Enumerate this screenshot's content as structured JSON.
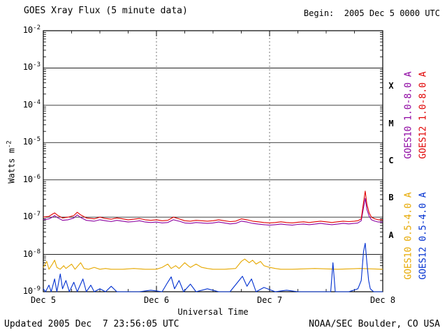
{
  "header": {
    "title": "GOES Xray Flux (5 minute data)",
    "begin": "Begin:  2005 Dec 5 0000 UTC"
  },
  "footer": {
    "updated": "Updated 2005 Dec  7 23:56:05 UTC",
    "credit": "NOAA/SEC Boulder, CO USA"
  },
  "chart_data": {
    "type": "line",
    "title": "GOES Xray Flux (5 minute data)",
    "xlabel": "Universal Time",
    "ylabel_base": "Watts m",
    "ylabel_exp": "-2",
    "x_units": "days from 2005 Dec 5 0000 UTC",
    "xlim": [
      0,
      3
    ],
    "ylim_exp": [
      -9,
      -2
    ],
    "grid": "horizontal solid each decade, vertical dashed at day boundaries",
    "x_ticks": [
      {
        "t": 0,
        "label": "Dec 5"
      },
      {
        "t": 1,
        "label": "Dec 6"
      },
      {
        "t": 2,
        "label": "Dec 7"
      },
      {
        "t": 3,
        "label": "Dec 8"
      }
    ],
    "flare_classes": [
      {
        "label": "X",
        "exp": -3.5
      },
      {
        "label": "M",
        "exp": -4.5
      },
      {
        "label": "C",
        "exp": -5.5
      },
      {
        "label": "B",
        "exp": -6.5
      },
      {
        "label": "A",
        "exp": -7.5
      }
    ],
    "series": [
      {
        "name": "GOES10 1.0-8.0 A",
        "color": "#8c00a0",
        "scale": 1e-07,
        "points": [
          [
            0,
            0.85
          ],
          [
            0.05,
            0.9
          ],
          [
            0.08,
            1.0
          ],
          [
            0.1,
            1.1
          ],
          [
            0.13,
            0.95
          ],
          [
            0.17,
            0.82
          ],
          [
            0.22,
            0.85
          ],
          [
            0.27,
            0.95
          ],
          [
            0.3,
            1.15
          ],
          [
            0.33,
            0.98
          ],
          [
            0.38,
            0.82
          ],
          [
            0.45,
            0.78
          ],
          [
            0.5,
            0.85
          ],
          [
            0.55,
            0.8
          ],
          [
            0.6,
            0.76
          ],
          [
            0.65,
            0.82
          ],
          [
            0.7,
            0.78
          ],
          [
            0.75,
            0.74
          ],
          [
            0.8,
            0.76
          ],
          [
            0.85,
            0.8
          ],
          [
            0.9,
            0.74
          ],
          [
            0.95,
            0.72
          ],
          [
            1.0,
            0.74
          ],
          [
            1.05,
            0.7
          ],
          [
            1.1,
            0.72
          ],
          [
            1.15,
            0.85
          ],
          [
            1.2,
            0.78
          ],
          [
            1.25,
            0.7
          ],
          [
            1.3,
            0.68
          ],
          [
            1.35,
            0.72
          ],
          [
            1.4,
            0.7
          ],
          [
            1.45,
            0.68
          ],
          [
            1.5,
            0.7
          ],
          [
            1.55,
            0.74
          ],
          [
            1.6,
            0.7
          ],
          [
            1.65,
            0.66
          ],
          [
            1.7,
            0.68
          ],
          [
            1.75,
            0.78
          ],
          [
            1.8,
            0.74
          ],
          [
            1.85,
            0.68
          ],
          [
            1.9,
            0.65
          ],
          [
            1.95,
            0.63
          ],
          [
            2.0,
            0.61
          ],
          [
            2.05,
            0.63
          ],
          [
            2.1,
            0.65
          ],
          [
            2.15,
            0.63
          ],
          [
            2.2,
            0.61
          ],
          [
            2.25,
            0.64
          ],
          [
            2.3,
            0.65
          ],
          [
            2.35,
            0.63
          ],
          [
            2.4,
            0.65
          ],
          [
            2.45,
            0.68
          ],
          [
            2.5,
            0.65
          ],
          [
            2.55,
            0.63
          ],
          [
            2.6,
            0.65
          ],
          [
            2.65,
            0.68
          ],
          [
            2.7,
            0.66
          ],
          [
            2.75,
            0.68
          ],
          [
            2.78,
            0.7
          ],
          [
            2.81,
            0.8
          ],
          [
            2.83,
            1.8
          ],
          [
            2.845,
            3.2
          ],
          [
            2.86,
            1.6
          ],
          [
            2.88,
            1.05
          ],
          [
            2.9,
            0.85
          ],
          [
            2.93,
            0.78
          ],
          [
            2.96,
            0.74
          ],
          [
            3.0,
            0.74
          ]
        ]
      },
      {
        "name": "GOES12 1.0-8.0 A",
        "color": "#e00000",
        "scale": 1e-07,
        "points": [
          [
            0,
            1.0
          ],
          [
            0.05,
            1.05
          ],
          [
            0.08,
            1.2
          ],
          [
            0.1,
            1.3
          ],
          [
            0.13,
            1.1
          ],
          [
            0.17,
            0.95
          ],
          [
            0.22,
            1.0
          ],
          [
            0.27,
            1.1
          ],
          [
            0.3,
            1.35
          ],
          [
            0.33,
            1.15
          ],
          [
            0.38,
            0.95
          ],
          [
            0.45,
            0.9
          ],
          [
            0.5,
            1.0
          ],
          [
            0.55,
            0.92
          ],
          [
            0.6,
            0.88
          ],
          [
            0.65,
            0.95
          ],
          [
            0.7,
            0.9
          ],
          [
            0.75,
            0.85
          ],
          [
            0.8,
            0.88
          ],
          [
            0.85,
            0.92
          ],
          [
            0.9,
            0.85
          ],
          [
            0.95,
            0.82
          ],
          [
            1.0,
            0.85
          ],
          [
            1.05,
            0.8
          ],
          [
            1.1,
            0.82
          ],
          [
            1.15,
            1.0
          ],
          [
            1.2,
            0.9
          ],
          [
            1.25,
            0.8
          ],
          [
            1.3,
            0.78
          ],
          [
            1.35,
            0.82
          ],
          [
            1.4,
            0.8
          ],
          [
            1.45,
            0.78
          ],
          [
            1.5,
            0.8
          ],
          [
            1.55,
            0.85
          ],
          [
            1.6,
            0.8
          ],
          [
            1.65,
            0.76
          ],
          [
            1.7,
            0.78
          ],
          [
            1.75,
            0.9
          ],
          [
            1.8,
            0.85
          ],
          [
            1.85,
            0.78
          ],
          [
            1.9,
            0.75
          ],
          [
            1.95,
            0.72
          ],
          [
            2.0,
            0.7
          ],
          [
            2.05,
            0.72
          ],
          [
            2.1,
            0.75
          ],
          [
            2.15,
            0.72
          ],
          [
            2.2,
            0.7
          ],
          [
            2.25,
            0.73
          ],
          [
            2.3,
            0.75
          ],
          [
            2.35,
            0.72
          ],
          [
            2.4,
            0.75
          ],
          [
            2.45,
            0.78
          ],
          [
            2.5,
            0.75
          ],
          [
            2.55,
            0.72
          ],
          [
            2.6,
            0.75
          ],
          [
            2.65,
            0.78
          ],
          [
            2.7,
            0.76
          ],
          [
            2.75,
            0.78
          ],
          [
            2.78,
            0.8
          ],
          [
            2.81,
            0.9
          ],
          [
            2.83,
            2.5
          ],
          [
            2.845,
            5.0
          ],
          [
            2.86,
            2.2
          ],
          [
            2.88,
            1.3
          ],
          [
            2.9,
            1.0
          ],
          [
            2.93,
            0.9
          ],
          [
            2.96,
            0.85
          ],
          [
            3.0,
            0.85
          ]
        ]
      },
      {
        "name": "GOES10 0.5-4.0 A",
        "color": "#e6a800",
        "scale": 1e-09,
        "points": [
          [
            0,
            4.5
          ],
          [
            0.03,
            6.5
          ],
          [
            0.05,
            4.0
          ],
          [
            0.08,
            5.5
          ],
          [
            0.1,
            7.0
          ],
          [
            0.12,
            4.5
          ],
          [
            0.15,
            4.0
          ],
          [
            0.18,
            5.0
          ],
          [
            0.2,
            4.2
          ],
          [
            0.25,
            5.5
          ],
          [
            0.28,
            4.0
          ],
          [
            0.33,
            6.0
          ],
          [
            0.36,
            4.2
          ],
          [
            0.4,
            4.0
          ],
          [
            0.45,
            4.5
          ],
          [
            0.5,
            4.0
          ],
          [
            0.55,
            4.2
          ],
          [
            0.6,
            4.0
          ],
          [
            0.7,
            4.0
          ],
          [
            0.8,
            4.2
          ],
          [
            0.9,
            4.0
          ],
          [
            1.0,
            4.0
          ],
          [
            1.05,
            4.5
          ],
          [
            1.1,
            5.5
          ],
          [
            1.13,
            4.2
          ],
          [
            1.17,
            5.0
          ],
          [
            1.2,
            4.2
          ],
          [
            1.25,
            6.0
          ],
          [
            1.28,
            5.0
          ],
          [
            1.3,
            4.5
          ],
          [
            1.35,
            5.5
          ],
          [
            1.4,
            4.5
          ],
          [
            1.45,
            4.2
          ],
          [
            1.5,
            4.0
          ],
          [
            1.6,
            4.0
          ],
          [
            1.7,
            4.2
          ],
          [
            1.75,
            6.5
          ],
          [
            1.78,
            7.5
          ],
          [
            1.82,
            6.0
          ],
          [
            1.85,
            7.0
          ],
          [
            1.88,
            5.5
          ],
          [
            1.92,
            6.5
          ],
          [
            1.95,
            5.0
          ],
          [
            2.0,
            4.5
          ],
          [
            2.05,
            4.2
          ],
          [
            2.1,
            4.0
          ],
          [
            2.2,
            4.0
          ],
          [
            2.4,
            4.2
          ],
          [
            2.6,
            4.0
          ],
          [
            2.8,
            4.2
          ],
          [
            3.0,
            4.0
          ]
        ]
      },
      {
        "name": "GOES12 0.5-4.0 A",
        "color": "#0030d0",
        "scale": 1e-09,
        "points": [
          [
            0,
            1.2
          ],
          [
            0.02,
            0.9
          ],
          [
            0.05,
            1.5
          ],
          [
            0.07,
            0.9
          ],
          [
            0.1,
            2.2
          ],
          [
            0.12,
            1.0
          ],
          [
            0.15,
            3.0
          ],
          [
            0.17,
            1.2
          ],
          [
            0.2,
            2.0
          ],
          [
            0.23,
            0.9
          ],
          [
            0.27,
            1.8
          ],
          [
            0.3,
            1.0
          ],
          [
            0.35,
            2.2
          ],
          [
            0.38,
            0.9
          ],
          [
            0.42,
            1.5
          ],
          [
            0.45,
            0.9
          ],
          [
            0.5,
            1.2
          ],
          [
            0.55,
            0.9
          ],
          [
            0.6,
            1.4
          ],
          [
            0.65,
            0.9
          ],
          [
            0.75,
            1.0
          ],
          [
            0.85,
            0.9
          ],
          [
            0.95,
            1.1
          ],
          [
            1.05,
            0.9
          ],
          [
            1.1,
            1.8
          ],
          [
            1.13,
            2.5
          ],
          [
            1.16,
            1.2
          ],
          [
            1.2,
            2.0
          ],
          [
            1.24,
            1.0
          ],
          [
            1.3,
            1.6
          ],
          [
            1.35,
            0.9
          ],
          [
            1.45,
            1.2
          ],
          [
            1.55,
            0.9
          ],
          [
            1.65,
            1.0
          ],
          [
            1.73,
            2.0
          ],
          [
            1.76,
            2.6
          ],
          [
            1.8,
            1.4
          ],
          [
            1.84,
            2.2
          ],
          [
            1.88,
            1.0
          ],
          [
            1.95,
            1.3
          ],
          [
            2.05,
            0.9
          ],
          [
            2.15,
            1.1
          ],
          [
            2.25,
            0.9
          ],
          [
            2.35,
            1.0
          ],
          [
            2.45,
            0.9
          ],
          [
            2.54,
            0.9
          ],
          [
            2.56,
            6.0
          ],
          [
            2.58,
            0.9
          ],
          [
            2.7,
            1.0
          ],
          [
            2.78,
            1.2
          ],
          [
            2.81,
            2.0
          ],
          [
            2.83,
            12.0
          ],
          [
            2.845,
            20.0
          ],
          [
            2.86,
            6.0
          ],
          [
            2.875,
            2.0
          ],
          [
            2.89,
            1.2
          ],
          [
            2.92,
            1.0
          ],
          [
            3.0,
            0.9
          ]
        ]
      }
    ],
    "legend_position": "right, rotated vertical labels"
  }
}
